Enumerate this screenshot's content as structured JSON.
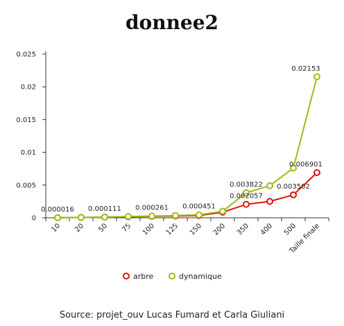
{
  "chart_data": {
    "type": "line",
    "title": "donnee2",
    "categories": [
      "10",
      "20",
      "50",
      "75",
      "100",
      "125",
      "150",
      "200",
      "350",
      "400",
      "500",
      "Taille finale"
    ],
    "ylim": [
      0,
      0.025
    ],
    "y_ticks": [
      "0",
      "0.005",
      "0.01",
      "0.015",
      "0.02",
      "0.025"
    ],
    "grid": false,
    "legend_position": "bottom",
    "series": [
      {
        "name": "arbre",
        "color": "#e3120b",
        "values": [
          1.6e-05,
          5e-05,
          0.0001,
          0.00015,
          0.00022,
          0.00028,
          0.00035,
          0.00085,
          0.002057,
          0.0025,
          0.003502,
          0.006901
        ],
        "labels": [
          "",
          "",
          "",
          "",
          "",
          "",
          "",
          "",
          "0.002057",
          "",
          "0.003502",
          "0.006901"
        ]
      },
      {
        "name": "dynamique",
        "color": "#9bbe13",
        "values": [
          1.6e-05,
          5e-05,
          0.000111,
          0.0002,
          0.000261,
          0.00035,
          0.000451,
          0.001,
          0.003822,
          0.0049,
          0.0076,
          0.02153
        ],
        "labels": [
          "0.000016",
          "",
          "0.000111",
          "",
          "0.000261",
          "",
          "0.000451",
          "",
          "0.003822",
          "",
          "",
          "0.02153"
        ]
      }
    ],
    "source": "Source: projet_ouv Lucas Fumard et Carla Giuliani"
  }
}
